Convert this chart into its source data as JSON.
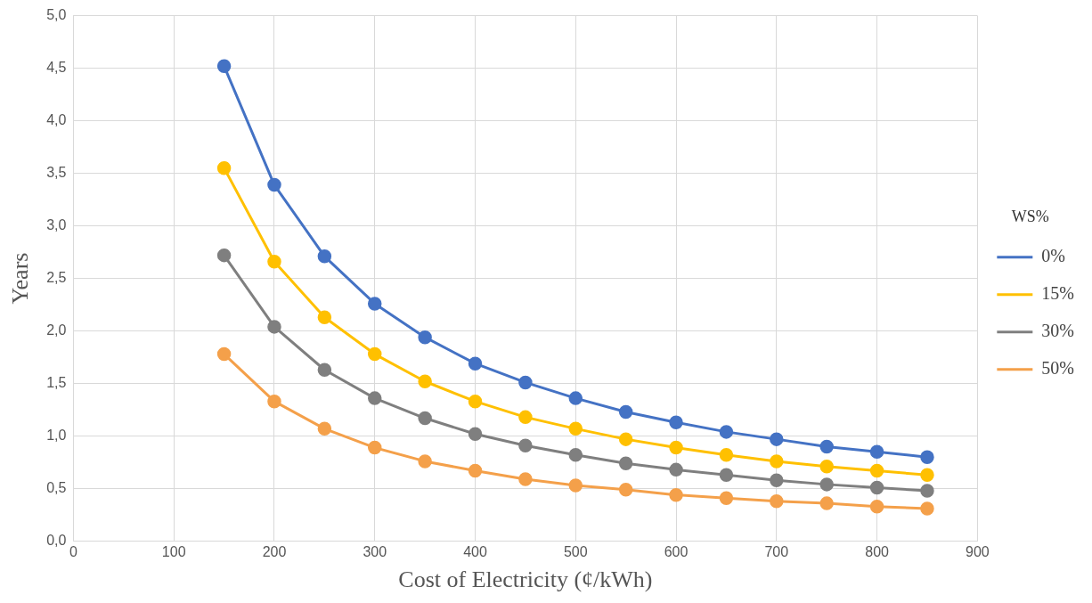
{
  "chart_data": {
    "type": "line",
    "xlabel": "Cost of Electricity (¢/kWh)",
    "ylabel": "Years",
    "legend_title": "WS%",
    "legend": "right",
    "grid": true,
    "marker": "circle",
    "line_style": "solid",
    "x": [
      150,
      200,
      250,
      300,
      350,
      400,
      450,
      500,
      550,
      600,
      650,
      700,
      750,
      800,
      850
    ],
    "xlim": [
      0,
      900
    ],
    "xticks": [
      0,
      100,
      200,
      300,
      400,
      500,
      600,
      700,
      800,
      900
    ],
    "ylim": [
      0,
      5
    ],
    "yticks": [
      {
        "value": 0,
        "label": "0,0"
      },
      {
        "value": 0.5,
        "label": "0,5"
      },
      {
        "value": 1,
        "label": "1,0"
      },
      {
        "value": 1.5,
        "label": "1,5"
      },
      {
        "value": 2,
        "label": "2,0"
      },
      {
        "value": 2.5,
        "label": "2,5"
      },
      {
        "value": 3,
        "label": "3,0"
      },
      {
        "value": 3.5,
        "label": "3,5"
      },
      {
        "value": 4,
        "label": "4,0"
      },
      {
        "value": 4.5,
        "label": "4,5"
      },
      {
        "value": 5,
        "label": "5,0"
      }
    ],
    "series": [
      {
        "name": "0%",
        "color": "#4472c4",
        "values": [
          4.52,
          3.39,
          2.71,
          2.26,
          1.94,
          1.69,
          1.51,
          1.36,
          1.23,
          1.13,
          1.04,
          0.97,
          0.9,
          0.85,
          0.8
        ]
      },
      {
        "name": "15%",
        "color": "#ffc000",
        "values": [
          3.55,
          2.66,
          2.13,
          1.78,
          1.52,
          1.33,
          1.18,
          1.07,
          0.97,
          0.89,
          0.82,
          0.76,
          0.71,
          0.67,
          0.63
        ]
      },
      {
        "name": "30%",
        "color": "#7f7f7f",
        "values": [
          2.72,
          2.04,
          1.63,
          1.36,
          1.17,
          1.02,
          0.91,
          0.82,
          0.74,
          0.68,
          0.63,
          0.58,
          0.54,
          0.51,
          0.48
        ]
      },
      {
        "name": "50%",
        "color": "#f4a04a",
        "values": [
          1.78,
          1.33,
          1.07,
          0.89,
          0.76,
          0.67,
          0.59,
          0.53,
          0.49,
          0.44,
          0.41,
          0.38,
          0.36,
          0.33,
          0.31
        ]
      }
    ]
  }
}
